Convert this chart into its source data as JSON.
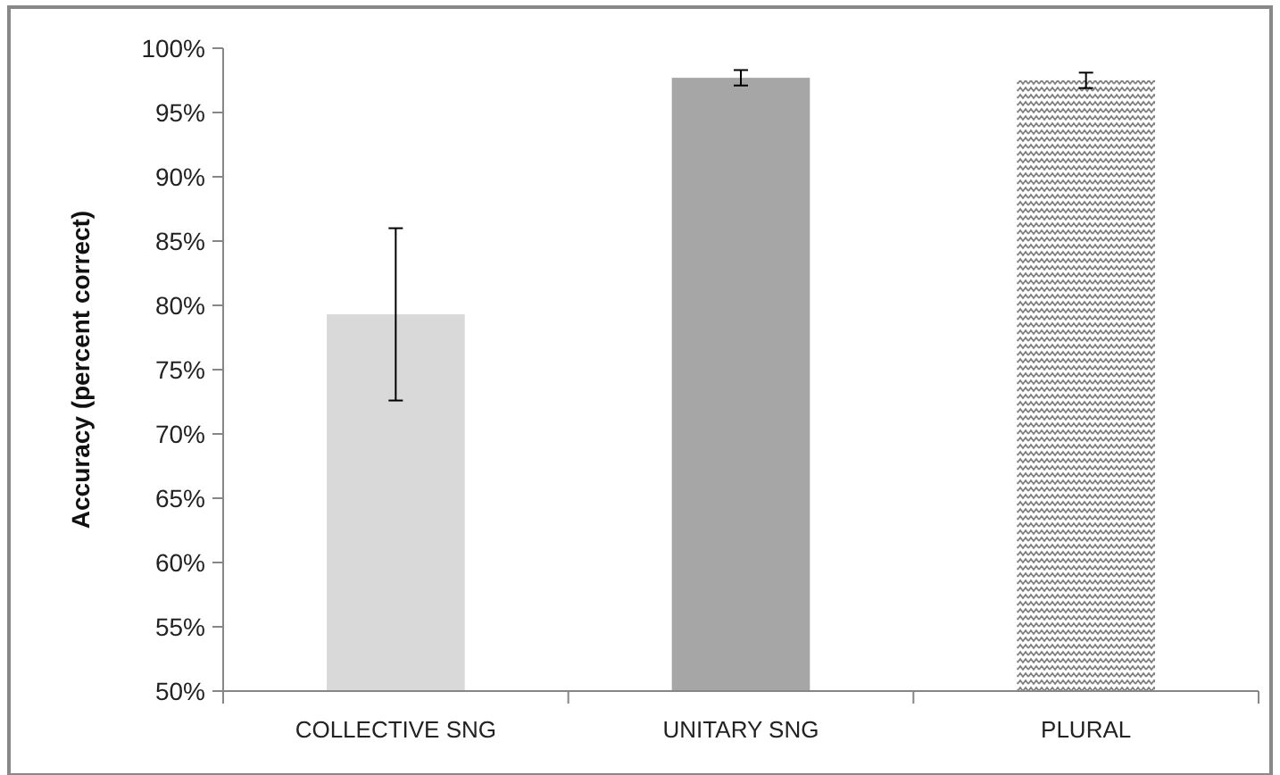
{
  "chart_data": {
    "type": "bar",
    "ylabel": "Accuracy (percent correct)",
    "categories": [
      "COLLECTIVE SNG",
      "UNITARY SNG",
      "PLURAL"
    ],
    "values": [
      79.3,
      97.7,
      97.5
    ],
    "errors": [
      6.7,
      0.6,
      0.6
    ],
    "colors": [
      "#d9d9d9",
      "#a6a6a6",
      "#808080"
    ],
    "ylim": [
      50,
      100
    ],
    "yticks": [
      {
        "value": 50,
        "label": "50%"
      },
      {
        "value": 55,
        "label": "55%"
      },
      {
        "value": 60,
        "label": "60%"
      },
      {
        "value": 65,
        "label": "65%"
      },
      {
        "value": 70,
        "label": "70%"
      },
      {
        "value": 75,
        "label": "75%"
      },
      {
        "value": 80,
        "label": "80%"
      },
      {
        "value": 85,
        "label": "85%"
      },
      {
        "value": 90,
        "label": "90%"
      },
      {
        "value": 95,
        "label": "95%"
      },
      {
        "value": 100,
        "label": "100%"
      }
    ],
    "grid": false
  }
}
